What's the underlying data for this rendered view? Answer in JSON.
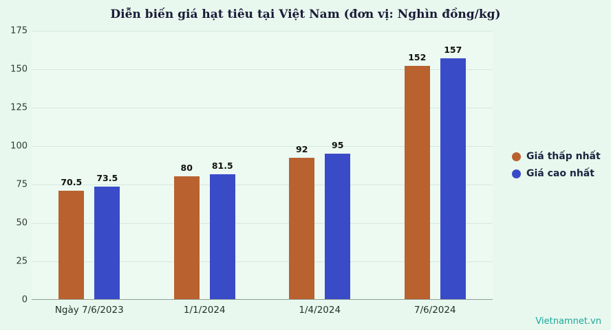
{
  "chart_data": {
    "type": "bar",
    "title": "Diễn biến giá hạt tiêu tại Việt Nam (đơn vị: Nghìn đồng/kg)",
    "categories": [
      "Ngày 7/6/2023",
      "1/1/2024",
      "1/4/2024",
      "7/6/2024"
    ],
    "series": [
      {
        "name": "Giá thấp nhất",
        "color": "#b9622f",
        "values": [
          70.5,
          80,
          92,
          152
        ]
      },
      {
        "name": "Giá cao nhất",
        "color": "#3a4bc8",
        "values": [
          73.5,
          81.5,
          95,
          157
        ]
      }
    ],
    "ylim": [
      0,
      175
    ],
    "ytick_step": 25,
    "grid": true,
    "legend_position": "right"
  },
  "watermark": "Vietnamnet.vn",
  "colors": {
    "background": "#e8f8ee",
    "plot_background": "#ecfaf2",
    "gridline": "#d5e8dc",
    "axis_line": "#8e9c95",
    "title_text": "#1b1b38",
    "tick_text": "#2f3a34",
    "value_label_text": "#111111",
    "legend_text": "#1b2440",
    "watermark_text": "#17a89b"
  }
}
